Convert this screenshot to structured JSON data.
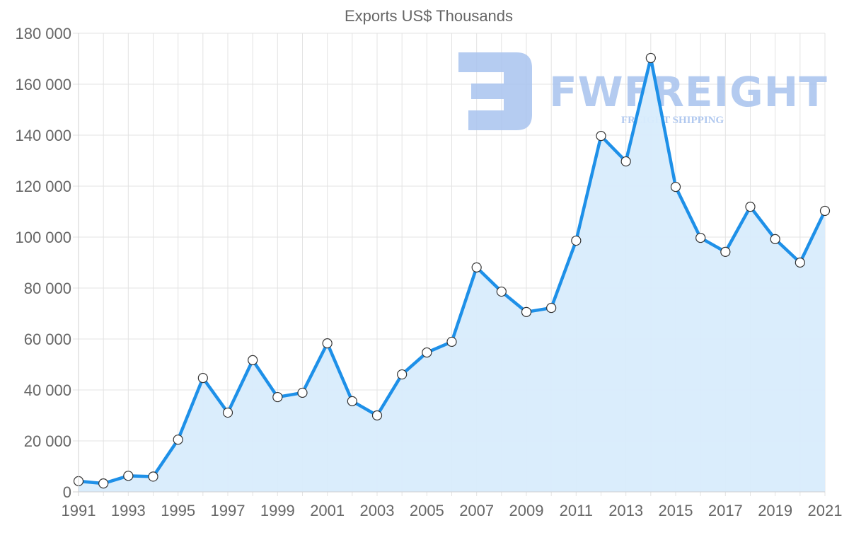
{
  "chart_data": {
    "type": "area",
    "title": "Exports US$ Thousands",
    "xlabel": "",
    "ylabel": "",
    "ylim": [
      0,
      180000
    ],
    "y_ticks": [
      0,
      20000,
      40000,
      60000,
      80000,
      100000,
      120000,
      140000,
      160000,
      180000
    ],
    "y_tick_labels": [
      "0",
      "20 000",
      "40 000",
      "60 000",
      "80 000",
      "100 000",
      "120 000",
      "140 000",
      "160 000",
      "180 000"
    ],
    "x_tick_labels": [
      "1991",
      "1993",
      "1995",
      "1997",
      "1999",
      "2001",
      "2003",
      "2005",
      "2007",
      "2009",
      "2011",
      "2013",
      "2015",
      "2017",
      "2019",
      "2021"
    ],
    "grid": true,
    "legend": null,
    "categories": [
      "1991",
      "1992",
      "1993",
      "1994",
      "1995",
      "1996",
      "1997",
      "1998",
      "1999",
      "2000",
      "2001",
      "2002",
      "2003",
      "2004",
      "2005",
      "2006",
      "2007",
      "2008",
      "2009",
      "2010",
      "2011",
      "2012",
      "2013",
      "2014",
      "2015",
      "2016",
      "2017",
      "2018",
      "2019",
      "2020",
      "2021"
    ],
    "series": [
      {
        "name": "Exports",
        "color": "#1e90e8",
        "fill": "#d8ecfc",
        "values": [
          4200,
          3300,
          6300,
          6000,
          20500,
          44700,
          31100,
          51700,
          37200,
          38900,
          58300,
          35600,
          30000,
          46100,
          54700,
          58900,
          88100,
          78600,
          70600,
          72200,
          98600,
          139700,
          129700,
          170300,
          119700,
          99700,
          94200,
          111900,
          99200,
          90000,
          110300
        ]
      }
    ]
  },
  "watermark": {
    "brand": "FWFREIGHT",
    "tagline": "FREIGHT SHIPPING",
    "color": "#a8c3ee"
  }
}
